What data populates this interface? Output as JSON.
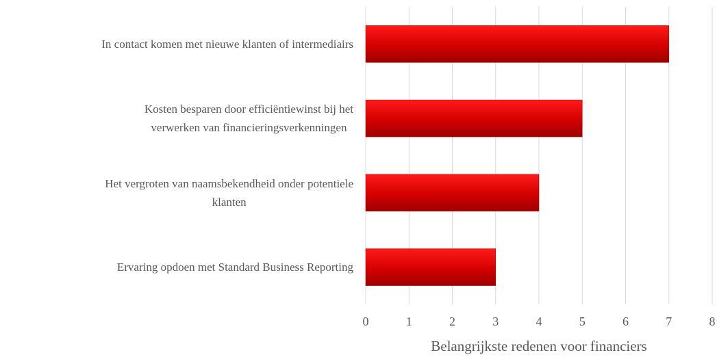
{
  "chart_data": {
    "type": "bar",
    "orientation": "horizontal",
    "xlabel": "Belangrijkste redenen voor financiers",
    "categories": [
      "In contact komen met nieuwe klanten of intermediairs",
      "Kosten besparen door efficiëntiewinst bij het\nverwerken van financieringsverkenningen",
      "Het vergroten van naamsbekendheid onder potentiele\nklanten",
      "Ervaring opdoen met Standard Business Reporting"
    ],
    "values": [
      7,
      5,
      4,
      3
    ],
    "color": "#c00000",
    "xlim": [
      0,
      8
    ],
    "xticks": [
      0,
      1,
      2,
      3,
      4,
      5,
      6,
      7,
      8
    ],
    "grid": true
  }
}
